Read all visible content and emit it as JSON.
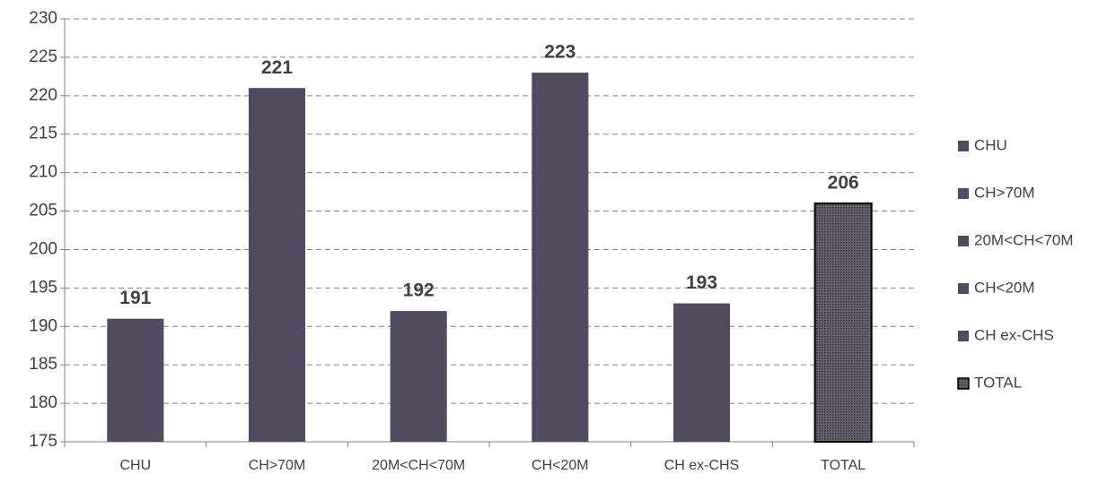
{
  "chart_data": {
    "type": "bar",
    "categories": [
      "CHU",
      "CH>70M",
      "20M<CH<70M",
      "CH<20M",
      "CH ex-CHS",
      "TOTAL"
    ],
    "values": [
      191,
      221,
      192,
      223,
      193,
      206
    ],
    "colors": [
      "#524b60",
      "#524b60",
      "#524b60",
      "#524b60",
      "#524b60",
      "#4a4650"
    ],
    "patterns": [
      null,
      null,
      null,
      null,
      null,
      "dots"
    ],
    "ylim": [
      175,
      230
    ],
    "yticks": [
      175,
      180,
      185,
      190,
      195,
      200,
      205,
      210,
      215,
      220,
      225,
      230
    ],
    "grid": true,
    "legend": "right"
  }
}
